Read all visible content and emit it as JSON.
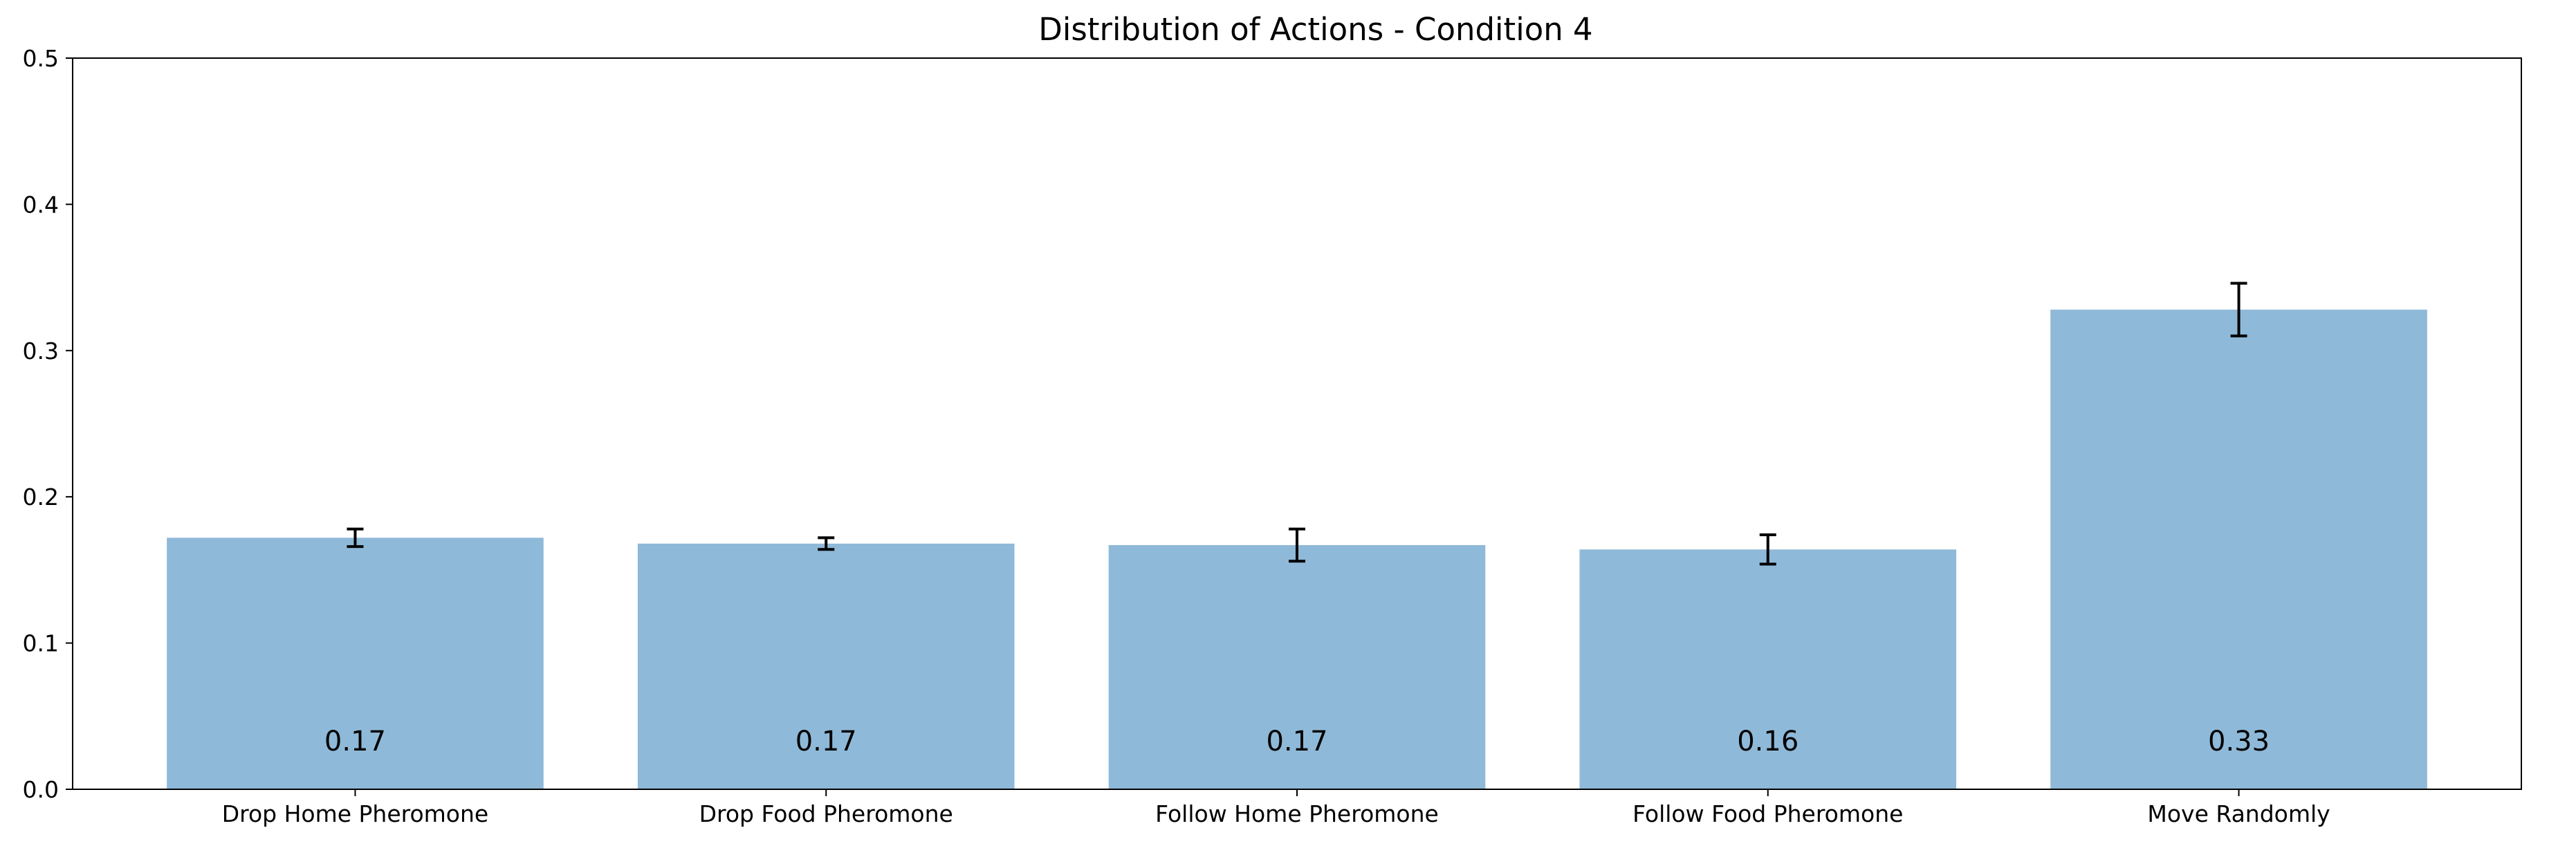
{
  "chart_data": {
    "type": "bar",
    "title": "Distribution of Actions - Condition 4",
    "xlabel": "",
    "ylabel": "",
    "categories": [
      "Drop Home Pheromone",
      "Drop Food Pheromone",
      "Follow Home Pheromone",
      "Follow Food Pheromone",
      "Move Randomly"
    ],
    "values": [
      0.172,
      0.168,
      0.167,
      0.164,
      0.328
    ],
    "error": [
      0.006,
      0.004,
      0.011,
      0.01,
      0.018
    ],
    "data_labels": [
      "0.17",
      "0.17",
      "0.17",
      "0.16",
      "0.33"
    ],
    "ylim": [
      0,
      0.5
    ],
    "yticks": [
      0.0,
      0.1,
      0.2,
      0.3,
      0.4,
      0.5
    ],
    "ytick_labels": [
      "0.0",
      "0.1",
      "0.2",
      "0.3",
      "0.4",
      "0.5"
    ],
    "bar_color": "#8fb9d8",
    "error_bar_color": "#000000",
    "grid": false,
    "legend": "none"
  }
}
